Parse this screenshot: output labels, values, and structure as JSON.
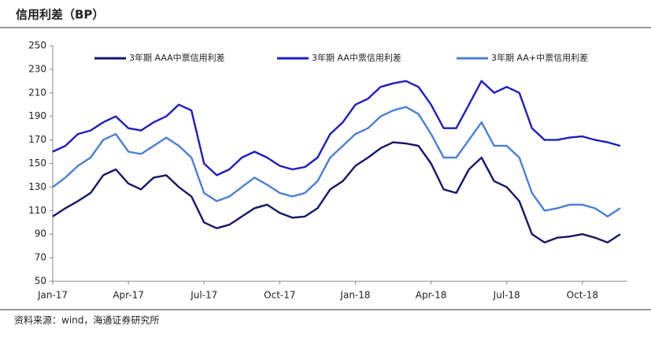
{
  "title": "信用利差（BP）",
  "source": "资料来源：wind，海通证券研究所",
  "chart_data": {
    "type": "line",
    "categories": [
      "Jan-17",
      null,
      null,
      null,
      null,
      null,
      "Apr-17",
      null,
      null,
      null,
      null,
      null,
      "Jul-17",
      null,
      null,
      null,
      null,
      null,
      "Oct-17",
      null,
      null,
      null,
      null,
      null,
      "Jan-18",
      null,
      null,
      null,
      null,
      null,
      "Apr-18",
      null,
      null,
      null,
      null,
      null,
      "Jul-18",
      null,
      null,
      null,
      null,
      null,
      "Oct-18",
      null,
      null,
      null
    ],
    "series": [
      {
        "name": "3年期 AAA中票信用利差",
        "color": "#15166b",
        "values": [
          105,
          112,
          118,
          125,
          140,
          145,
          133,
          128,
          138,
          140,
          130,
          122,
          100,
          95,
          98,
          105,
          112,
          115,
          108,
          104,
          105,
          112,
          128,
          135,
          148,
          155,
          163,
          168,
          167,
          165,
          150,
          128,
          125,
          145,
          155,
          135,
          130,
          118,
          90,
          83,
          87,
          88,
          90,
          87,
          83,
          90
        ]
      },
      {
        "name": "3年期 AA中票信用利差",
        "color": "#1d1dc4",
        "values": [
          160,
          165,
          175,
          178,
          185,
          190,
          180,
          178,
          185,
          190,
          200,
          195,
          150,
          140,
          145,
          155,
          160,
          155,
          148,
          145,
          147,
          155,
          175,
          185,
          200,
          205,
          215,
          218,
          220,
          215,
          200,
          180,
          180,
          200,
          220,
          210,
          215,
          210,
          180,
          170,
          170,
          172,
          173,
          170,
          168,
          165
        ]
      },
      {
        "name": "3年期 AA+中票信用利差",
        "color": "#4a7fd8",
        "values": [
          130,
          138,
          148,
          155,
          170,
          175,
          160,
          158,
          165,
          172,
          165,
          155,
          125,
          118,
          122,
          130,
          138,
          132,
          125,
          122,
          125,
          135,
          155,
          165,
          175,
          180,
          190,
          195,
          198,
          192,
          175,
          155,
          155,
          170,
          185,
          165,
          165,
          155,
          125,
          110,
          112,
          115,
          115,
          112,
          105,
          112
        ]
      }
    ],
    "ylim": [
      50,
      250
    ],
    "yticks": [
      50,
      70,
      90,
      110,
      130,
      150,
      170,
      190,
      210,
      230,
      250
    ],
    "grid": false,
    "legend": "top"
  }
}
